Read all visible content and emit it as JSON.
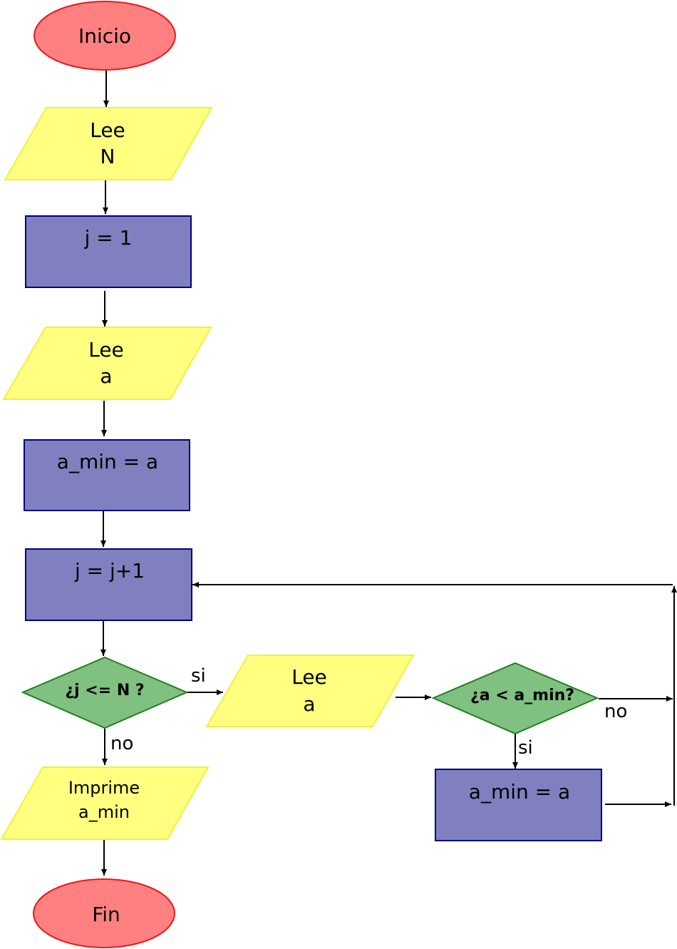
{
  "colors": {
    "terminal_fill": "#ff8080",
    "terminal_stroke": "#e8191b",
    "io_fill": "#ffff80",
    "io_stroke": "#f0f040",
    "process_fill": "#8080c0",
    "process_stroke": "#000080",
    "decision_fill": "#80c080",
    "decision_stroke": "#208020"
  },
  "nodes": {
    "start": {
      "label": "Inicio"
    },
    "read_n": {
      "line1": "Lee",
      "line2": "N"
    },
    "init_j": {
      "label": "j = 1"
    },
    "read_a": {
      "line1": "Lee",
      "line2": "a"
    },
    "init_min": {
      "label": "a_min = a"
    },
    "increment_j": {
      "label": "j = j+1"
    },
    "check_j": {
      "label": "¿j <= N ?"
    },
    "loop_read_a": {
      "line1": "Lee",
      "line2": "a"
    },
    "check_min": {
      "label": "¿a < a_min?"
    },
    "update_min": {
      "label": "a_min = a"
    },
    "print_min": {
      "line1": "Imprime",
      "line2": "a_min"
    },
    "end": {
      "label": "Fin"
    }
  },
  "edge_labels": {
    "check_j_yes": "si",
    "check_j_no": "no",
    "check_min_no": "no",
    "check_min_yes": "si"
  }
}
